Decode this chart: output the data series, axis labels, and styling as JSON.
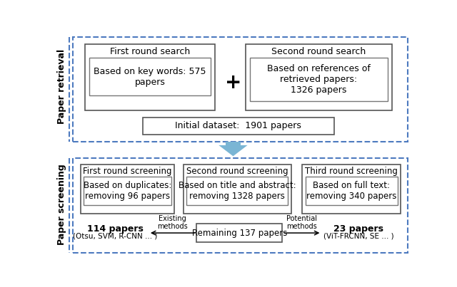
{
  "bg_color": "#ffffff",
  "dashed_border_color": "#4d7abf",
  "solid_box_edge": "#555555",
  "inner_box_edge": "#777777",
  "arrow_color": "#7ab5d4",
  "text_color": "#000000",
  "top_section_label": "Paper retrieval",
  "bottom_section_label": "Paper screening",
  "box1_title": "First round search",
  "box1_text": "Based on key words: 575\npapers",
  "box2_title": "Second round search",
  "box2_text": "Based on references of\nretrieved papers:\n1326 papers",
  "box3_text": "Initial dataset:  1901 papers",
  "box4_title": "First round screening",
  "box4_text": "Based on duplicates:\nremoving 96 papers",
  "box5_title": "Second round screening",
  "box5_text": "Based on title and abstract:\nremoving 1328 papers",
  "box6_title": "Third round screening",
  "box6_text": "Based on full text:\nremoving 340 papers",
  "box7_text": "Remaining 137 papers",
  "left_label_line1": "114 papers",
  "left_label_line2": "(Otsu, SVM, R-CNN ... )",
  "left_arrow_label": "Existing\nmethods",
  "right_label_line1": "23 papers",
  "right_label_line2": "(ViT-FRCNN, SE ... )",
  "right_arrow_label": "Potential\nmethods",
  "plus_sign": "+"
}
